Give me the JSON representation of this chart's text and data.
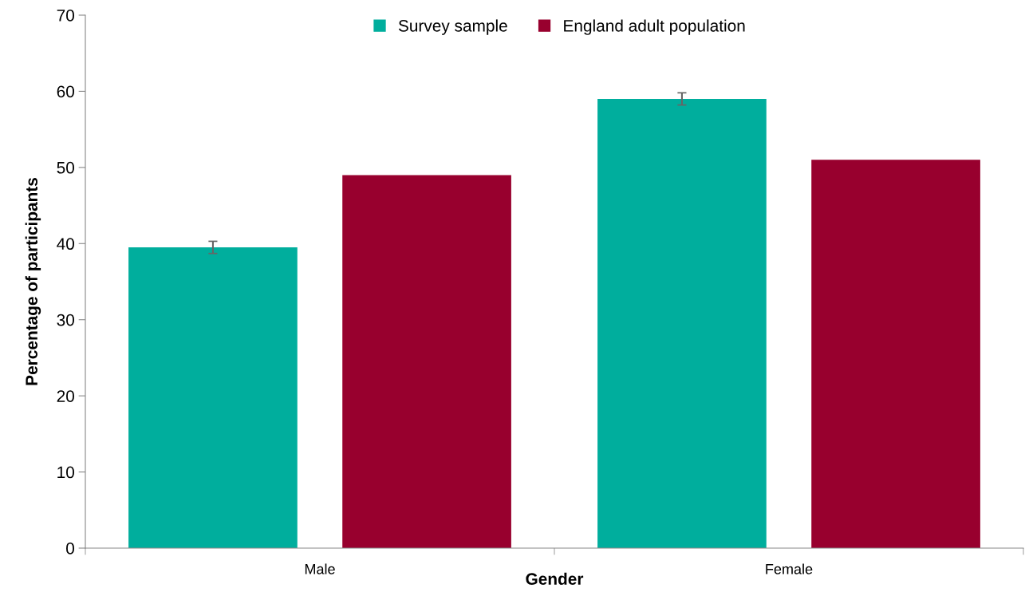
{
  "chart_data": {
    "type": "bar",
    "xlabel": "Gender",
    "ylabel": "Percentage of participants",
    "categories": [
      "Male",
      "Female"
    ],
    "series": [
      {
        "name": "Survey sample",
        "color": "#00ae9d",
        "values": [
          39.5,
          59.0
        ],
        "errors": [
          0.8,
          0.8
        ]
      },
      {
        "name": "England adult population",
        "color": "#98002e",
        "values": [
          49.0,
          51.0
        ]
      }
    ],
    "ylim": [
      0,
      70
    ],
    "yticks": [
      0,
      10,
      20,
      30,
      40,
      50,
      60,
      70
    ],
    "grid": false,
    "legend": "top"
  }
}
